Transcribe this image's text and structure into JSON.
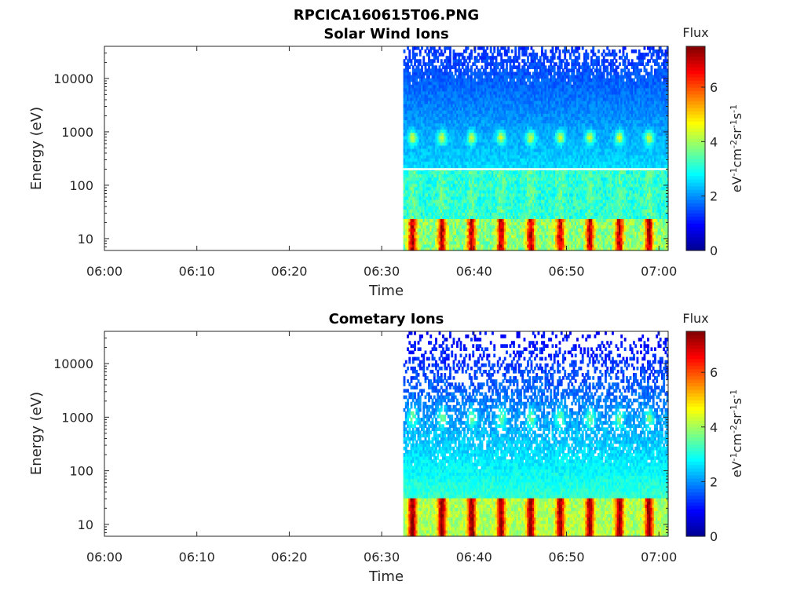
{
  "figure_title": "RPCICA160615T06.PNG",
  "colormap": [
    "#00008f",
    "#0000ff",
    "#0080ff",
    "#00ffff",
    "#80ff80",
    "#ffff00",
    "#ff8000",
    "#ff0000",
    "#800000"
  ],
  "chart_data": [
    {
      "type": "heatmap",
      "title": "Solar Wind Ions",
      "xlabel": "Time",
      "ylabel": "Energy (eV)",
      "x_ticks": [
        "06:00",
        "06:10",
        "06:20",
        "06:30",
        "06:40",
        "06:50",
        "07:00"
      ],
      "xlim": [
        "06:00",
        "07:01"
      ],
      "y_scale": "log",
      "y_ticks": [
        "10",
        "100",
        "1000",
        "10000"
      ],
      "ylim": [
        6,
        40000
      ],
      "data_start": "06:32:20",
      "pulse_period_min": 3.2,
      "colorbar": {
        "title": "Flux",
        "label": "eV-1cm-2sr-1s-1",
        "ticks": [
          "0",
          "2",
          "4",
          "6"
        ],
        "range": [
          0,
          7.5
        ]
      },
      "features": [
        {
          "name": "low-energy band",
          "energy_eV": [
            6,
            25
          ],
          "flux_peak": 6.5
        },
        {
          "name": "solar wind peak",
          "energy_eV": [
            500,
            1200
          ],
          "flux_peak": 4.5
        },
        {
          "name": "gap line",
          "energy_eV": 200
        }
      ]
    },
    {
      "type": "heatmap",
      "title": "Cometary Ions",
      "xlabel": "Time",
      "ylabel": "Energy (eV)",
      "x_ticks": [
        "06:00",
        "06:10",
        "06:20",
        "06:30",
        "06:40",
        "06:50",
        "07:00"
      ],
      "xlim": [
        "06:00",
        "07:01"
      ],
      "y_scale": "log",
      "y_ticks": [
        "10",
        "100",
        "1000",
        "10000"
      ],
      "ylim": [
        6,
        40000
      ],
      "data_start": "06:32:20",
      "pulse_period_min": 3.2,
      "colorbar": {
        "title": "Flux",
        "label": "eV-1cm-2sr-1s-1",
        "ticks": [
          "0",
          "2",
          "4",
          "6"
        ],
        "range": [
          0,
          7.5
        ]
      },
      "features": [
        {
          "name": "low-energy band",
          "energy_eV": [
            6,
            30
          ],
          "flux_peak": 7.0
        },
        {
          "name": "sparse high-energy noise",
          "energy_eV": [
            1000,
            40000
          ],
          "flux_peak": 1.5
        }
      ]
    }
  ]
}
